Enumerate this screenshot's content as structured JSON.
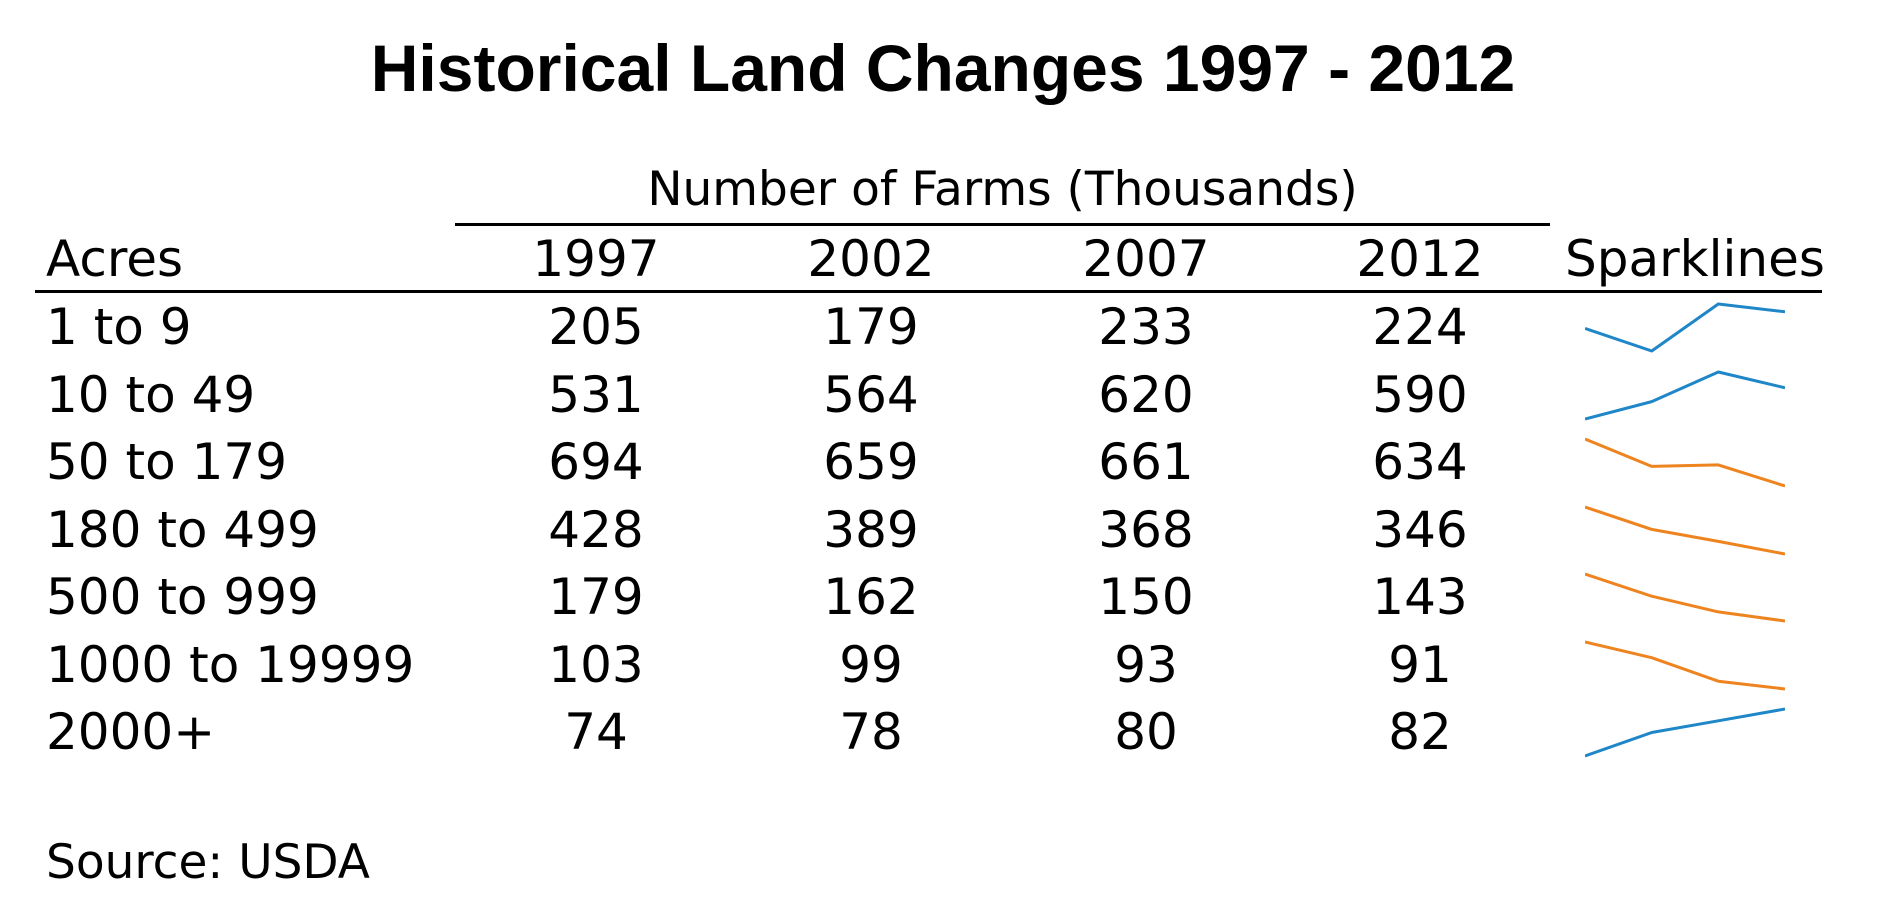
{
  "title": "Historical Land Changes 1997 - 2012",
  "group_header": "Number of Farms (Thousands)",
  "columns": {
    "acres": "Acres",
    "years": [
      "1997",
      "2002",
      "2007",
      "2012"
    ],
    "sparklines": "Sparklines"
  },
  "colors": {
    "increase": "#1f86c8",
    "decrease": "#ee8420"
  },
  "source": "Source: USDA",
  "chart_data": {
    "type": "table",
    "title": "Historical Land Changes 1997 - 2012",
    "column_group": "Number of Farms (Thousands)",
    "categories": [
      "1997",
      "2002",
      "2007",
      "2012"
    ],
    "rows": [
      {
        "label": "1 to 9",
        "values": [
          205,
          179,
          233,
          224
        ],
        "color": "#1f86c8"
      },
      {
        "label": "10 to 49",
        "values": [
          531,
          564,
          620,
          590
        ],
        "color": "#1f86c8"
      },
      {
        "label": "50 to 179",
        "values": [
          694,
          659,
          661,
          634
        ],
        "color": "#ee8420"
      },
      {
        "label": "180 to 499",
        "values": [
          428,
          389,
          368,
          346
        ],
        "color": "#ee8420"
      },
      {
        "label": "500 to 999",
        "values": [
          179,
          162,
          150,
          143
        ],
        "color": "#ee8420"
      },
      {
        "label": "1000 to 19999",
        "values": [
          103,
          99,
          93,
          91
        ],
        "color": "#ee8420"
      },
      {
        "label": "2000+",
        "values": [
          74,
          78,
          80,
          82
        ],
        "color": "#1f86c8"
      }
    ]
  }
}
